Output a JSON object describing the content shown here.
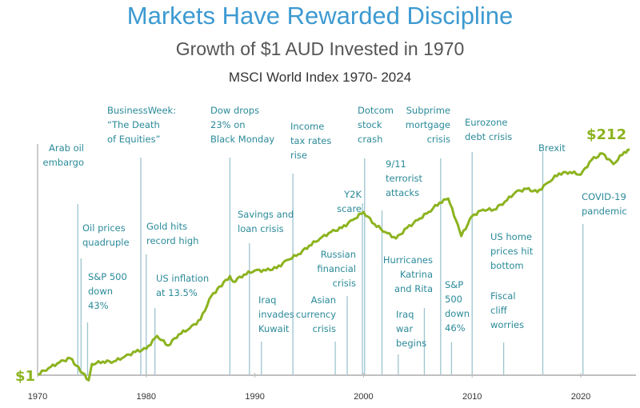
{
  "chart_data": {
    "type": "line",
    "title": "Markets Have Rewarded Discipline",
    "subtitle": "Growth of $1 AUD Invested in 1970",
    "subtitle2": "MSCI World Index 1970- 2024",
    "yscale": "log",
    "grid": false,
    "x_ticks": [
      "1970",
      "1980",
      "1990",
      "2000",
      "2010",
      "2020"
    ],
    "start_label": "$1",
    "end_label": "$212",
    "colors": {
      "title": "#3d9ad1",
      "line": "#8cb320",
      "annotation_text": "#2b8a99",
      "annotation_line": "#9cc4cf",
      "axis": "#999999"
    },
    "series": [
      {
        "x": [
          1970,
          1971,
          1972,
          1973,
          1974.7,
          1975,
          1976,
          1977,
          1978,
          1979,
          1980,
          1981,
          1982,
          1983,
          1984,
          1985,
          1986,
          1987.7,
          1988,
          1989,
          1990,
          1991,
          1992,
          1993,
          1994,
          1995,
          1996,
          1997,
          1998,
          1999,
          2000,
          2001,
          2002,
          2003,
          2004,
          2005,
          2006,
          2007,
          2007.8,
          2008.5,
          2009,
          2010,
          2011,
          2012,
          2013,
          2014,
          2015,
          2016,
          2017,
          2018,
          2019,
          2020,
          2021,
          2022,
          2023,
          2024,
          2024.5
        ],
        "y": [
          1.0,
          1.16,
          1.33,
          1.47,
          0.87,
          1.28,
          1.36,
          1.36,
          1.52,
          1.71,
          1.84,
          2.5,
          1.99,
          2.6,
          3.0,
          3.7,
          6.5,
          10.4,
          9.1,
          10.8,
          11.9,
          11.9,
          12.6,
          15.3,
          17.5,
          21.5,
          25.5,
          29.7,
          32.7,
          39.6,
          47.9,
          36,
          29.7,
          25.5,
          32.7,
          39.6,
          47.9,
          60,
          66,
          39.6,
          27,
          43.6,
          50.7,
          50.7,
          61,
          77,
          83,
          77,
          97,
          120,
          124,
          117,
          166,
          193,
          150,
          200,
          212
        ]
      }
    ],
    "events": [
      {
        "year": 1973.7,
        "lines": [
          "Arab oil",
          "embargo"
        ]
      },
      {
        "year": 1974.0,
        "lines": [
          "Oil prices",
          "quadruple"
        ]
      },
      {
        "year": 1974.6,
        "lines": [
          "S&P 500",
          "down",
          "43%"
        ]
      },
      {
        "year": 1979.5,
        "lines": [
          "BusinessWeek:",
          "“The Death",
          "of Equities”"
        ]
      },
      {
        "year": 1980.0,
        "lines": [
          "Gold hits",
          "record high"
        ]
      },
      {
        "year": 1980.8,
        "lines": [
          "US inflation",
          "at 13.5%"
        ]
      },
      {
        "year": 1987.7,
        "lines": [
          "Dow drops",
          "23% on",
          "Black Monday"
        ]
      },
      {
        "year": 1989.5,
        "lines": [
          "Savings and",
          "loan crisis"
        ]
      },
      {
        "year": 1990.6,
        "lines": [
          "Iraq",
          "invades",
          "Kuwait"
        ]
      },
      {
        "year": 1993.5,
        "lines": [
          "Income",
          "tax rates",
          "rise"
        ]
      },
      {
        "year": 1997.4,
        "lines": [
          "Asian",
          "currency",
          "crisis"
        ]
      },
      {
        "year": 1998.5,
        "lines": [
          "Russian",
          "financial",
          "crisis"
        ]
      },
      {
        "year": 1999.9,
        "lines": [
          "Y2K",
          "scare"
        ]
      },
      {
        "year": 2000.1,
        "lines": [
          "Dotcom",
          "stock",
          "crash"
        ]
      },
      {
        "year": 2001.7,
        "lines": [
          "9/11",
          "terrorist",
          "attacks"
        ]
      },
      {
        "year": 2003.2,
        "lines": [
          "Iraq",
          "war",
          "begins"
        ]
      },
      {
        "year": 2005.6,
        "lines": [
          "Hurricanes",
          "Katrina",
          "and Rita"
        ]
      },
      {
        "year": 2007.1,
        "lines": [
          "Subprime",
          "mortgage",
          "crisis"
        ]
      },
      {
        "year": 2008.1,
        "lines": [
          "S&P",
          "500",
          "down",
          "46%"
        ]
      },
      {
        "year": 2010.0,
        "lines": [
          "Eurozone",
          "debt crisis"
        ]
      },
      {
        "year": null,
        "lines": [
          "US home",
          "prices hit",
          "bottom"
        ]
      },
      {
        "year": 2012.9,
        "lines": [
          "Fiscal",
          "cliff",
          "worries"
        ]
      },
      {
        "year": 2016.5,
        "lines": [
          "Brexit"
        ]
      },
      {
        "year": 2020.2,
        "lines": [
          "COVID-19",
          "pandemic"
        ]
      }
    ]
  }
}
